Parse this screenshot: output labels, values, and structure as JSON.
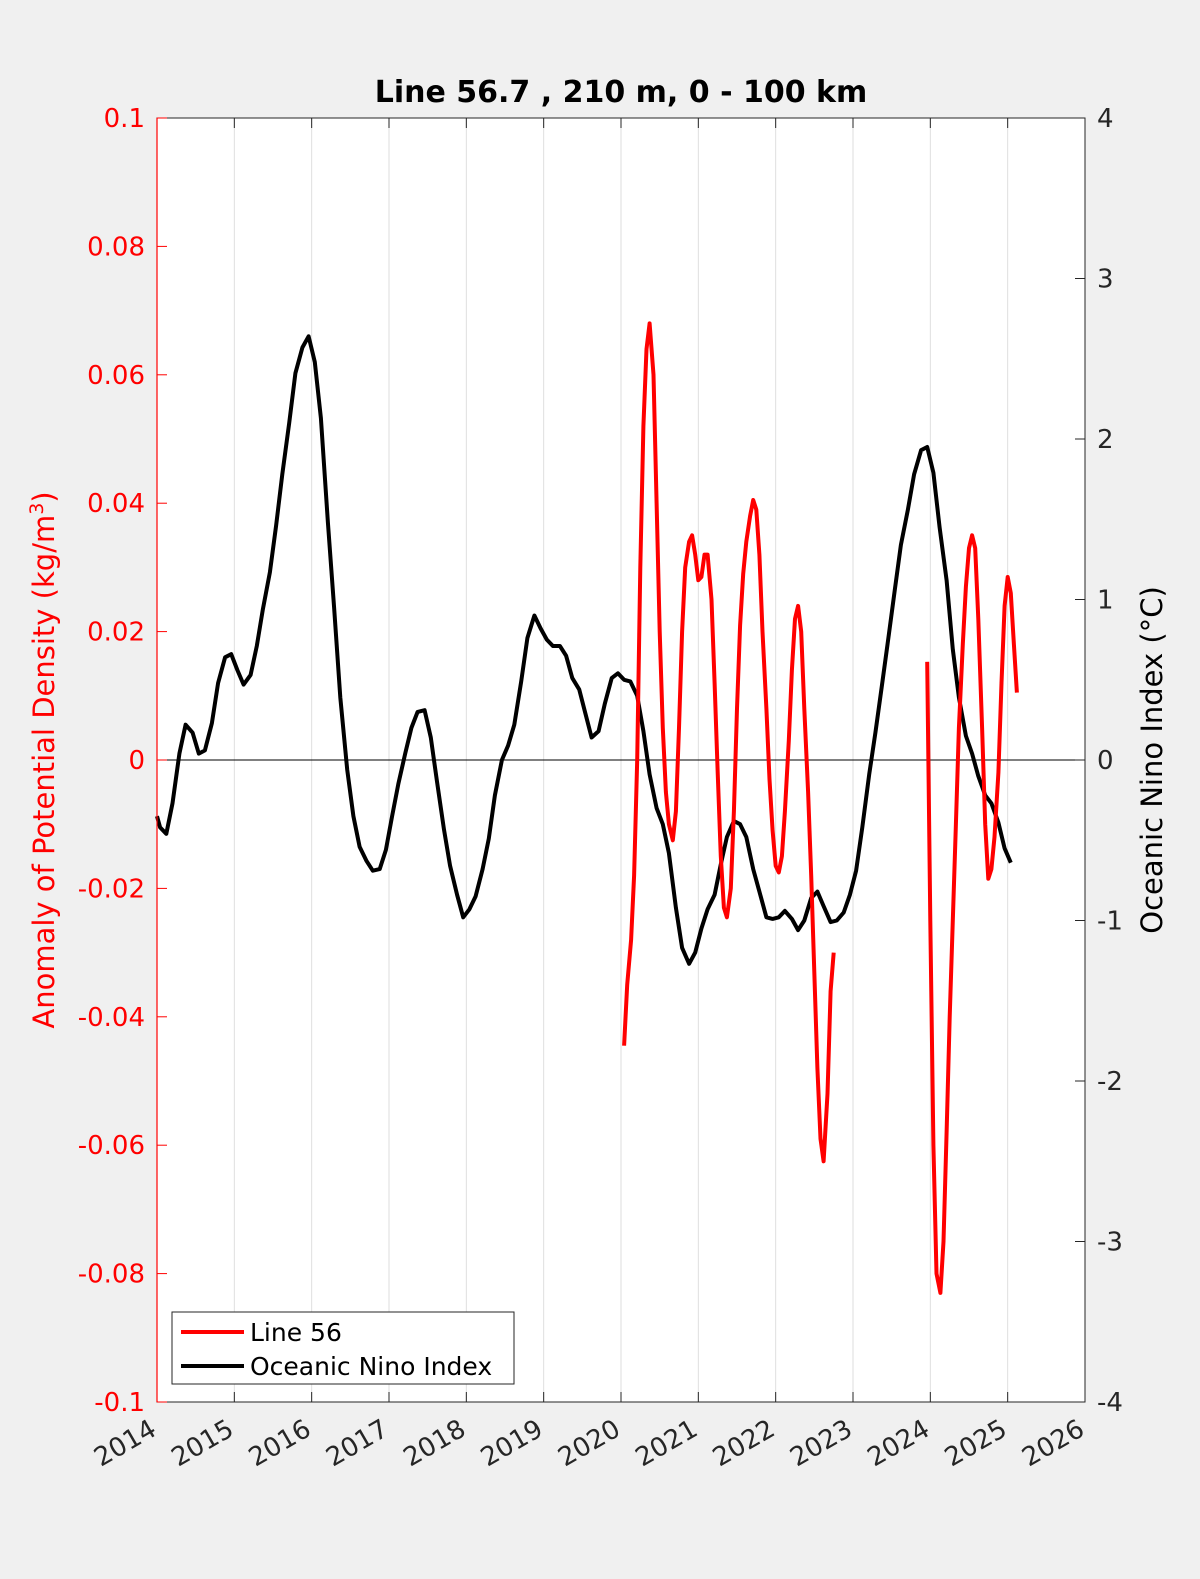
{
  "chart_data": {
    "type": "line",
    "title": "Line 56.7 , 210 m, 0 - 100 km",
    "ylabel_left": "Anomaly of Potential Density (kg/m",
    "ylabel_left_sup": "3",
    "ylabel_left_close": ")",
    "ylabel_right": "Oceanic Nino Index (°C)",
    "xlim": [
      2014,
      2026
    ],
    "ylim_left": [
      -0.1,
      0.1
    ],
    "ylim_right": [
      -4,
      4
    ],
    "x_ticks": [
      "2014",
      "2015",
      "2016",
      "2017",
      "2018",
      "2019",
      "2020",
      "2021",
      "2022",
      "2023",
      "2024",
      "2025",
      "2026"
    ],
    "y_left_ticks": [
      "0.1",
      "0.08",
      "0.06",
      "0.04",
      "0.02",
      "0",
      "-0.02",
      "-0.04",
      "-0.06",
      "-0.08",
      "-0.1"
    ],
    "y_right_ticks": [
      "4",
      "3",
      "2",
      "1",
      "0",
      "-1",
      "-2",
      "-3",
      "-4"
    ],
    "grid": "vertical",
    "legend_position": "bottom-left",
    "colors": {
      "line56": "#ff0000",
      "oni": "#000000",
      "left_axis": "#ff0000",
      "right_axis": "#000000"
    },
    "series": [
      {
        "name": "Line 56",
        "axis": "left",
        "color": "#ff0000",
        "segments": [
          [
            [
              2020.04,
              -0.0445
            ],
            [
              2020.08,
              -0.035
            ],
            [
              2020.13,
              -0.028
            ],
            [
              2020.17,
              -0.018
            ],
            [
              2020.21,
              0.0
            ],
            [
              2020.25,
              0.03
            ],
            [
              2020.29,
              0.052
            ],
            [
              2020.33,
              0.064
            ],
            [
              2020.37,
              0.068
            ],
            [
              2020.42,
              0.06
            ],
            [
              2020.46,
              0.04
            ],
            [
              2020.5,
              0.02
            ],
            [
              2020.54,
              0.005
            ],
            [
              2020.58,
              -0.005
            ],
            [
              2020.62,
              -0.01
            ],
            [
              2020.67,
              -0.0125
            ],
            [
              2020.71,
              -0.008
            ],
            [
              2020.75,
              0.005
            ],
            [
              2020.79,
              0.02
            ],
            [
              2020.83,
              0.03
            ],
            [
              2020.88,
              0.034
            ],
            [
              2020.92,
              0.035
            ],
            [
              2020.96,
              0.032
            ],
            [
              2021.0,
              0.028
            ],
            [
              2021.04,
              0.0285
            ],
            [
              2021.08,
              0.032
            ],
            [
              2021.12,
              0.032
            ],
            [
              2021.17,
              0.025
            ],
            [
              2021.21,
              0.012
            ],
            [
              2021.25,
              -0.002
            ],
            [
              2021.29,
              -0.015
            ],
            [
              2021.33,
              -0.023
            ],
            [
              2021.37,
              -0.0245
            ],
            [
              2021.42,
              -0.02
            ],
            [
              2021.46,
              -0.008
            ],
            [
              2021.5,
              0.008
            ],
            [
              2021.54,
              0.021
            ],
            [
              2021.58,
              0.029
            ],
            [
              2021.62,
              0.034
            ],
            [
              2021.67,
              0.038
            ],
            [
              2021.71,
              0.0405
            ],
            [
              2021.75,
              0.039
            ],
            [
              2021.79,
              0.032
            ],
            [
              2021.83,
              0.02
            ],
            [
              2021.88,
              0.008
            ],
            [
              2021.92,
              -0.003
            ],
            [
              2021.96,
              -0.011
            ],
            [
              2022.0,
              -0.0165
            ],
            [
              2022.04,
              -0.0175
            ],
            [
              2022.08,
              -0.015
            ],
            [
              2022.12,
              -0.008
            ],
            [
              2022.17,
              0.003
            ],
            [
              2022.21,
              0.014
            ],
            [
              2022.25,
              0.022
            ],
            [
              2022.29,
              0.024
            ],
            [
              2022.33,
              0.02
            ],
            [
              2022.37,
              0.008
            ],
            [
              2022.42,
              -0.005
            ],
            [
              2022.46,
              -0.018
            ],
            [
              2022.5,
              -0.033
            ],
            [
              2022.54,
              -0.048
            ],
            [
              2022.58,
              -0.059
            ],
            [
              2022.62,
              -0.0625
            ],
            [
              2022.67,
              -0.052
            ],
            [
              2022.71,
              -0.036
            ],
            [
              2022.75,
              -0.03
            ]
          ],
          [
            [
              2023.96,
              0.0153
            ],
            [
              2024.0,
              -0.025
            ],
            [
              2024.04,
              -0.06
            ],
            [
              2024.08,
              -0.08
            ],
            [
              2024.13,
              -0.083
            ],
            [
              2024.17,
              -0.075
            ],
            [
              2024.21,
              -0.058
            ],
            [
              2024.25,
              -0.04
            ],
            [
              2024.29,
              -0.025
            ],
            [
              2024.33,
              -0.01
            ],
            [
              2024.37,
              0.005
            ],
            [
              2024.42,
              0.018
            ],
            [
              2024.46,
              0.027
            ],
            [
              2024.5,
              0.033
            ],
            [
              2024.54,
              0.035
            ],
            [
              2024.58,
              0.033
            ],
            [
              2024.62,
              0.022
            ],
            [
              2024.67,
              0.005
            ],
            [
              2024.71,
              -0.01
            ],
            [
              2024.75,
              -0.0185
            ],
            [
              2024.79,
              -0.017
            ],
            [
              2024.83,
              -0.012
            ],
            [
              2024.88,
              -0.002
            ],
            [
              2024.92,
              0.012
            ],
            [
              2024.96,
              0.024
            ],
            [
              2025.0,
              0.0285
            ],
            [
              2025.04,
              0.026
            ],
            [
              2025.08,
              0.018
            ],
            [
              2025.12,
              0.0105
            ]
          ]
        ]
      },
      {
        "name": "Oceanic Nino Index",
        "axis": "right",
        "color": "#000000",
        "segments": [
          [
            [
              2014.0,
              -0.35
            ],
            [
              2014.04,
              -0.42
            ],
            [
              2014.12,
              -0.46
            ],
            [
              2014.2,
              -0.27
            ],
            [
              2014.29,
              0.04
            ],
            [
              2014.37,
              0.22
            ],
            [
              2014.46,
              0.17
            ],
            [
              2014.54,
              0.04
            ],
            [
              2014.62,
              0.06
            ],
            [
              2014.71,
              0.23
            ],
            [
              2014.79,
              0.48
            ],
            [
              2014.88,
              0.64
            ],
            [
              2014.96,
              0.66
            ],
            [
              2015.04,
              0.56
            ],
            [
              2015.12,
              0.47
            ],
            [
              2015.21,
              0.53
            ],
            [
              2015.29,
              0.71
            ],
            [
              2015.37,
              0.94
            ],
            [
              2015.46,
              1.17
            ],
            [
              2015.54,
              1.46
            ],
            [
              2015.62,
              1.78
            ],
            [
              2015.71,
              2.1
            ],
            [
              2015.79,
              2.41
            ],
            [
              2015.88,
              2.57
            ],
            [
              2015.96,
              2.64
            ],
            [
              2016.04,
              2.48
            ],
            [
              2016.12,
              2.13
            ],
            [
              2016.21,
              1.48
            ],
            [
              2016.29,
              0.95
            ],
            [
              2016.37,
              0.39
            ],
            [
              2016.46,
              -0.06
            ],
            [
              2016.54,
              -0.35
            ],
            [
              2016.62,
              -0.54
            ],
            [
              2016.71,
              -0.63
            ],
            [
              2016.79,
              -0.69
            ],
            [
              2016.88,
              -0.68
            ],
            [
              2016.96,
              -0.56
            ],
            [
              2017.04,
              -0.35
            ],
            [
              2017.12,
              -0.15
            ],
            [
              2017.21,
              0.04
            ],
            [
              2017.29,
              0.2
            ],
            [
              2017.37,
              0.3
            ],
            [
              2017.46,
              0.31
            ],
            [
              2017.54,
              0.14
            ],
            [
              2017.62,
              -0.13
            ],
            [
              2017.71,
              -0.43
            ],
            [
              2017.79,
              -0.66
            ],
            [
              2017.88,
              -0.84
            ],
            [
              2017.96,
              -0.98
            ],
            [
              2018.04,
              -0.93
            ],
            [
              2018.12,
              -0.85
            ],
            [
              2018.21,
              -0.68
            ],
            [
              2018.29,
              -0.49
            ],
            [
              2018.37,
              -0.22
            ],
            [
              2018.46,
              0.0
            ],
            [
              2018.54,
              0.09
            ],
            [
              2018.62,
              0.22
            ],
            [
              2018.71,
              0.49
            ],
            [
              2018.79,
              0.76
            ],
            [
              2018.88,
              0.9
            ],
            [
              2018.96,
              0.82
            ],
            [
              2019.04,
              0.75
            ],
            [
              2019.12,
              0.71
            ],
            [
              2019.21,
              0.71
            ],
            [
              2019.29,
              0.65
            ],
            [
              2019.37,
              0.51
            ],
            [
              2019.46,
              0.44
            ],
            [
              2019.54,
              0.29
            ],
            [
              2019.62,
              0.14
            ],
            [
              2019.71,
              0.18
            ],
            [
              2019.79,
              0.35
            ],
            [
              2019.88,
              0.51
            ],
            [
              2019.96,
              0.54
            ],
            [
              2020.04,
              0.5
            ],
            [
              2020.12,
              0.49
            ],
            [
              2020.21,
              0.4
            ],
            [
              2020.29,
              0.18
            ],
            [
              2020.37,
              -0.09
            ],
            [
              2020.46,
              -0.3
            ],
            [
              2020.54,
              -0.4
            ],
            [
              2020.62,
              -0.58
            ],
            [
              2020.71,
              -0.92
            ],
            [
              2020.79,
              -1.17
            ],
            [
              2020.88,
              -1.27
            ],
            [
              2020.96,
              -1.2
            ],
            [
              2021.04,
              -1.05
            ],
            [
              2021.12,
              -0.93
            ],
            [
              2021.21,
              -0.84
            ],
            [
              2021.29,
              -0.65
            ],
            [
              2021.37,
              -0.48
            ],
            [
              2021.46,
              -0.38
            ],
            [
              2021.54,
              -0.4
            ],
            [
              2021.62,
              -0.48
            ],
            [
              2021.71,
              -0.68
            ],
            [
              2021.79,
              -0.82
            ],
            [
              2021.88,
              -0.98
            ],
            [
              2021.96,
              -0.99
            ],
            [
              2022.04,
              -0.98
            ],
            [
              2022.12,
              -0.94
            ],
            [
              2022.21,
              -0.99
            ],
            [
              2022.29,
              -1.06
            ],
            [
              2022.37,
              -1.0
            ],
            [
              2022.46,
              -0.86
            ],
            [
              2022.54,
              -0.82
            ],
            [
              2022.62,
              -0.91
            ],
            [
              2022.71,
              -1.01
            ],
            [
              2022.79,
              -1.0
            ],
            [
              2022.88,
              -0.95
            ],
            [
              2022.96,
              -0.84
            ],
            [
              2023.04,
              -0.69
            ],
            [
              2023.12,
              -0.42
            ],
            [
              2023.21,
              -0.09
            ],
            [
              2023.29,
              0.17
            ],
            [
              2023.37,
              0.45
            ],
            [
              2023.46,
              0.77
            ],
            [
              2023.54,
              1.06
            ],
            [
              2023.62,
              1.34
            ],
            [
              2023.71,
              1.56
            ],
            [
              2023.79,
              1.78
            ],
            [
              2023.88,
              1.93
            ],
            [
              2023.96,
              1.95
            ],
            [
              2024.04,
              1.79
            ],
            [
              2024.12,
              1.45
            ],
            [
              2024.21,
              1.12
            ],
            [
              2024.29,
              0.69
            ],
            [
              2024.37,
              0.39
            ],
            [
              2024.46,
              0.15
            ],
            [
              2024.54,
              0.04
            ],
            [
              2024.62,
              -0.1
            ],
            [
              2024.71,
              -0.22
            ],
            [
              2024.79,
              -0.27
            ],
            [
              2024.88,
              -0.39
            ],
            [
              2024.96,
              -0.55
            ],
            [
              2025.04,
              -0.64
            ]
          ]
        ]
      }
    ]
  }
}
